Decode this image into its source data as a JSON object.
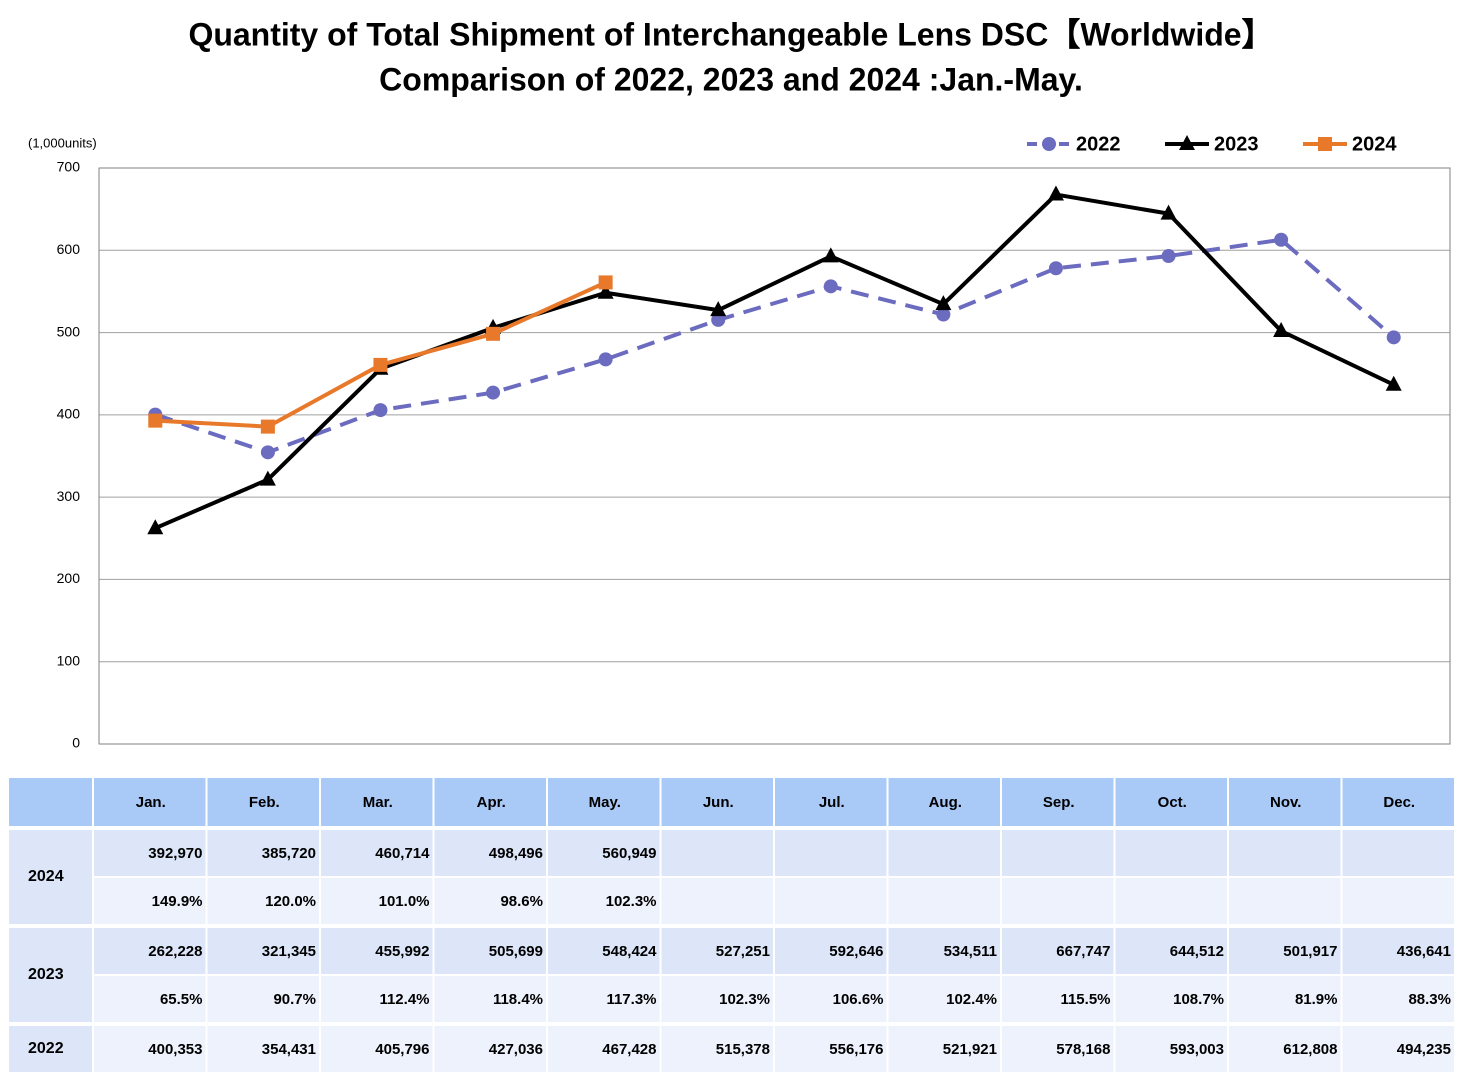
{
  "chart_data": {
    "type": "line",
    "title": "Quantity of Total Shipment of Interchangeable Lens DSC【Worldwide】",
    "subtitle": "Comparison of 2022, 2023 and 2024 :Jan.-May.",
    "y_label": "(1,000units)",
    "categories": [
      "Jan.",
      "Feb.",
      "Mar.",
      "Apr.",
      "May.",
      "Jun.",
      "Jul.",
      "Aug.",
      "Sep.",
      "Oct.",
      "Nov.",
      "Dec."
    ],
    "ylim": [
      0,
      700
    ],
    "yticks": [
      0,
      100,
      200,
      300,
      400,
      500,
      600,
      700
    ],
    "grid": true,
    "legend": "top-right",
    "series": [
      {
        "name": "2022",
        "color": "#6b6bbf",
        "dashed": true,
        "marker": "circle",
        "values": [
          400.353,
          354.431,
          405.796,
          427.036,
          467.428,
          515.378,
          556.176,
          521.921,
          578.168,
          593.003,
          612.808,
          494.235
        ],
        "value_labels": [
          "400,353",
          "354,431",
          "405,796",
          "427,036",
          "467,428",
          "515,378",
          "556,176",
          "521,921",
          "578,168",
          "593,003",
          "612,808",
          "494,235"
        ]
      },
      {
        "name": "2023",
        "color": "#000000",
        "dashed": false,
        "marker": "triangle",
        "values": [
          262.228,
          321.345,
          455.992,
          505.699,
          548.424,
          527.251,
          592.646,
          534.511,
          667.747,
          644.512,
          501.917,
          436.641
        ],
        "value_labels": [
          "262,228",
          "321,345",
          "455,992",
          "505,699",
          "548,424",
          "527,251",
          "592,646",
          "534,511",
          "667,747",
          "644,512",
          "501,917",
          "436,641"
        ],
        "ratios": [
          "65.5%",
          "90.7%",
          "112.4%",
          "118.4%",
          "117.3%",
          "102.3%",
          "106.6%",
          "102.4%",
          "115.5%",
          "108.7%",
          "81.9%",
          "88.3%"
        ]
      },
      {
        "name": "2024",
        "color": "#e8782a",
        "dashed": false,
        "marker": "square",
        "values": [
          392.97,
          385.72,
          460.714,
          498.496,
          560.949,
          null,
          null,
          null,
          null,
          null,
          null,
          null
        ],
        "value_labels": [
          "392,970",
          "385,720",
          "460,714",
          "498,496",
          "560,949",
          null,
          null,
          null,
          null,
          null,
          null,
          null
        ],
        "ratios": [
          "149.9%",
          "120.0%",
          "101.0%",
          "98.6%",
          "102.3%",
          null,
          null,
          null,
          null,
          null,
          null,
          null
        ]
      }
    ]
  }
}
